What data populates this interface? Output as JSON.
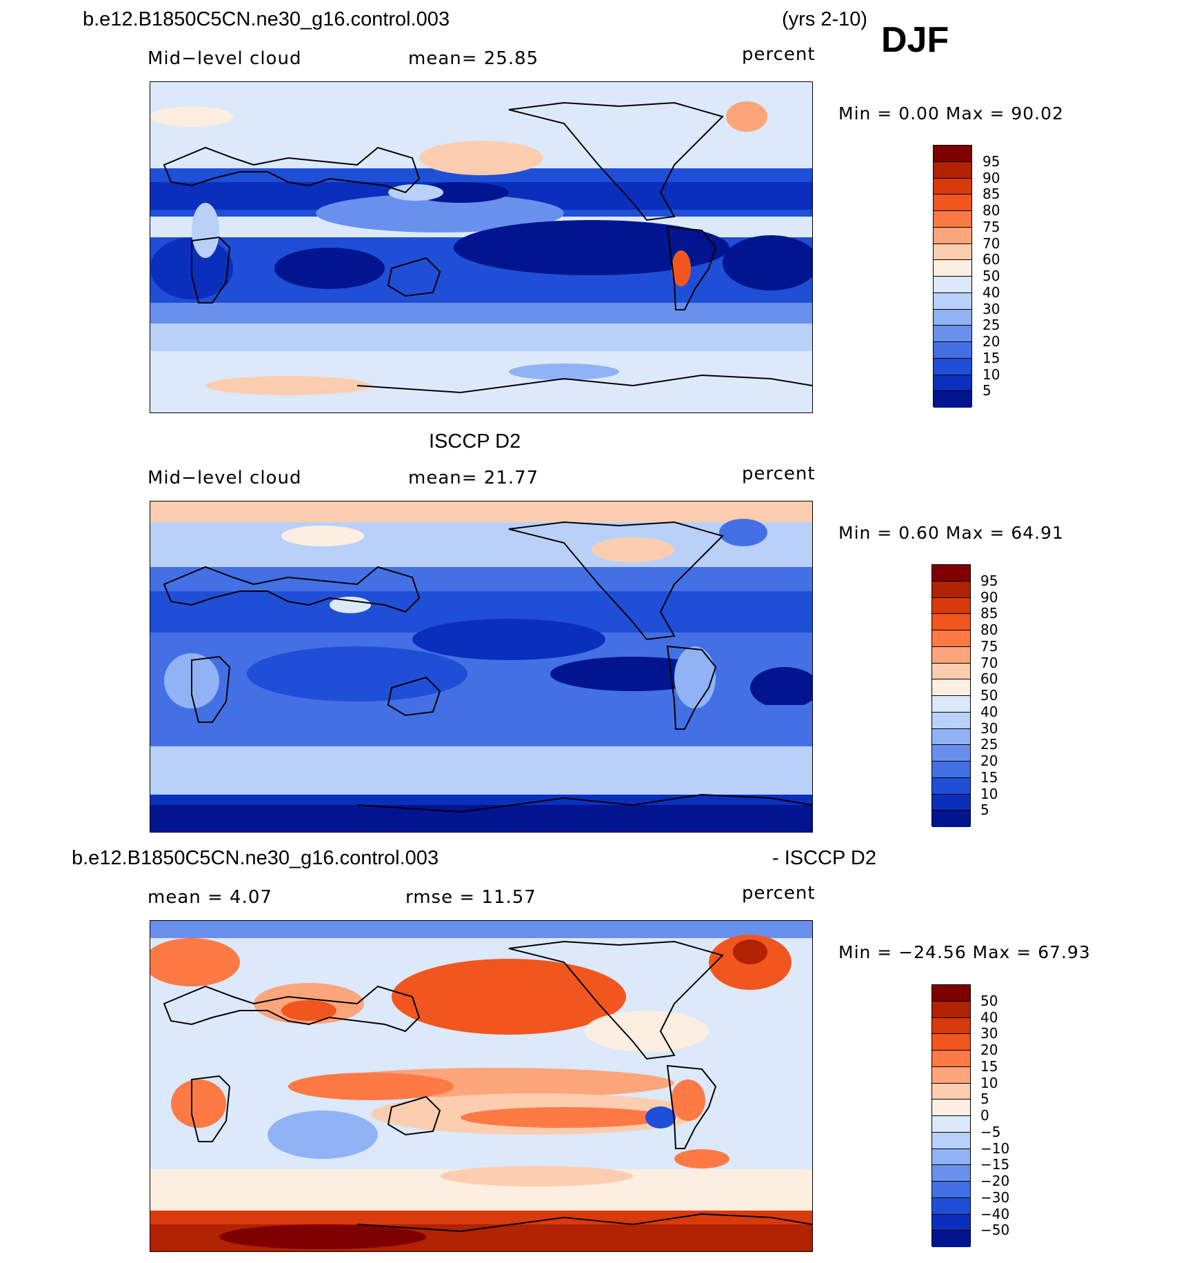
{
  "header": {
    "case_name": "b.e12.B1850C5CN.ne30_g16.control.003",
    "years": "(yrs 2-10)",
    "season": "DJF"
  },
  "panels": [
    {
      "id": "model",
      "title": "",
      "variable": "Mid−level cloud",
      "mean_text": "mean=   25.85",
      "units": "percent",
      "minmax_text": "Min =     0.00 Max =    90.02",
      "colorbar_labels": [
        "95",
        "90",
        "85",
        "80",
        "75",
        "70",
        "60",
        "50",
        "40",
        "30",
        "25",
        "20",
        "15",
        "10",
        "5"
      ]
    },
    {
      "id": "obs",
      "title": "ISCCP D2",
      "variable": "Mid−level cloud",
      "mean_text": "mean=   21.77",
      "units": "percent",
      "minmax_text": "Min =     0.60 Max =    64.91",
      "colorbar_labels": [
        "95",
        "90",
        "85",
        "80",
        "75",
        "70",
        "60",
        "50",
        "40",
        "30",
        "25",
        "20",
        "15",
        "10",
        "5"
      ]
    },
    {
      "id": "diff",
      "title_left": "b.e12.B1850C5CN.ne30_g16.control.003",
      "title_right": "- ISCCP D2",
      "mean_text": "mean =     4.07",
      "rmse_text": "rmse =     11.57",
      "units": "percent",
      "minmax_text": "Min = −24.56  Max =    67.93",
      "colorbar_labels": [
        "50",
        "40",
        "30",
        "20",
        "15",
        "10",
        "5",
        "0",
        "−5",
        "−10",
        "−15",
        "−20",
        "−30",
        "−40",
        "−50"
      ]
    }
  ],
  "colors": {
    "abs_scale": [
      "#7f0000",
      "#b02200",
      "#d93a0c",
      "#f2561f",
      "#fd7a45",
      "#fda57b",
      "#fdcdb0",
      "#fdeee2",
      "#dbe9fb",
      "#b9d1f8",
      "#91b3f5",
      "#6a90ee",
      "#4470e5",
      "#1f4fd6",
      "#0a2fbd",
      "#00158f"
    ],
    "diff_scale": [
      "#7f0000",
      "#b02200",
      "#d93a0c",
      "#f2561f",
      "#fd7a45",
      "#fda57b",
      "#fdcdb0",
      "#fdeee2",
      "#dbe9fb",
      "#b9d1f8",
      "#91b3f5",
      "#6a90ee",
      "#4470e5",
      "#1f4fd6",
      "#0a2fbd",
      "#00158f"
    ]
  },
  "chart_data": [
    {
      "type": "heatmap",
      "title": "b.e12.B1850C5CN.ne30_g16.control.003 (yrs 2-10) DJF",
      "subtitle": "Mid−level cloud",
      "units": "percent",
      "mean": 25.85,
      "min": 0.0,
      "max": 90.02,
      "contour_levels": [
        5,
        10,
        15,
        20,
        25,
        30,
        40,
        50,
        60,
        70,
        75,
        80,
        85,
        90,
        95
      ]
    },
    {
      "type": "heatmap",
      "title": "ISCCP D2",
      "subtitle": "Mid−level cloud",
      "units": "percent",
      "mean": 21.77,
      "min": 0.6,
      "max": 64.91,
      "contour_levels": [
        5,
        10,
        15,
        20,
        25,
        30,
        40,
        50,
        60,
        70,
        75,
        80,
        85,
        90,
        95
      ]
    },
    {
      "type": "heatmap",
      "title": "b.e12.B1850C5CN.ne30_g16.control.003 - ISCCP D2",
      "units": "percent",
      "mean": 4.07,
      "rmse": 11.57,
      "min": -24.56,
      "max": 67.93,
      "contour_levels": [
        -50,
        -40,
        -30,
        -20,
        -15,
        -10,
        -5,
        0,
        5,
        10,
        15,
        20,
        30,
        40,
        50
      ]
    }
  ]
}
